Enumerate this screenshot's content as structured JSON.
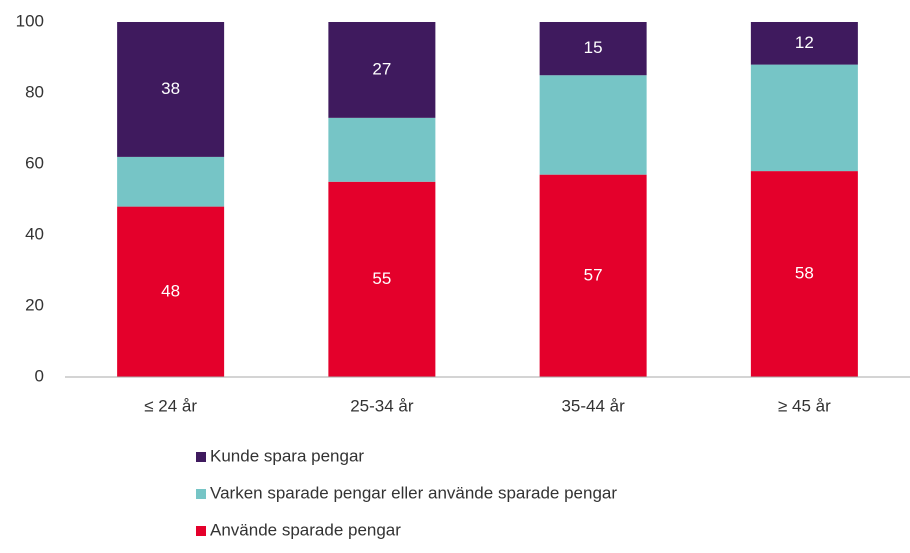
{
  "chart_data": {
    "type": "stacked_bar",
    "categories": [
      "≤ 24 år",
      "25-34 år",
      "35-44 år",
      "≥ 45 år"
    ],
    "series": [
      {
        "name": "Använde sparade pengar",
        "color": "#e4002b",
        "values": [
          48,
          55,
          57,
          58
        ],
        "data_labels": true
      },
      {
        "name": "Varken sparade pengar eller använde sparade pengar",
        "color": "#76c5c6",
        "values": [
          14,
          18,
          28,
          30
        ],
        "data_labels": false
      },
      {
        "name": "Kunde spara pengar",
        "color": "#3f1a5e",
        "values": [
          38,
          27,
          15,
          12
        ],
        "data_labels": true
      }
    ],
    "ylim": [
      0,
      100
    ],
    "yticks": [
      0,
      20,
      40,
      60,
      80,
      100
    ],
    "grid": false,
    "legend": "bottom"
  }
}
